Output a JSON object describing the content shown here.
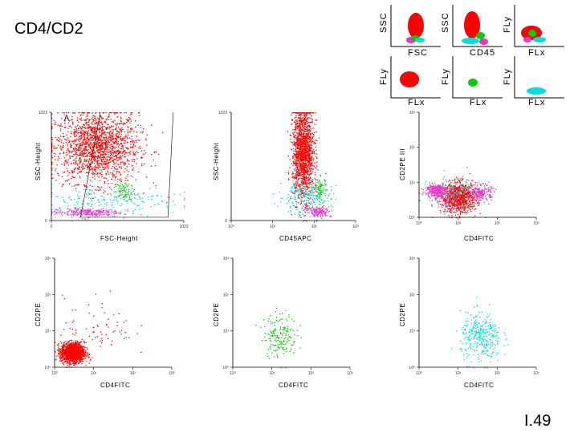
{
  "title": "CD4/CD2",
  "slide_number": "I.49",
  "colors": {
    "lymph": "#ff0000",
    "mono": "#00cc00",
    "gran": "#00dddd",
    "debris": "#ee33cc"
  },
  "schematics": [
    {
      "xlabel": "FSC",
      "ylabel": "SSC"
    },
    {
      "xlabel": "CD45",
      "ylabel": "SSC"
    },
    {
      "xlabel": "FLx",
      "ylabel": "FLy"
    },
    {
      "xlabel": "FLx",
      "ylabel": "FLy"
    },
    {
      "xlabel": "FLx",
      "ylabel": "FLy"
    },
    {
      "xlabel": "FLx",
      "ylabel": "FLy"
    }
  ],
  "chart_data": [
    {
      "type": "scatter",
      "panel_letter": "A",
      "xlabel": "FSC-Height",
      "ylabel": "SSC-Height",
      "xticks": [
        "0",
        "1023"
      ],
      "yticks": [
        "0",
        "1023"
      ],
      "xlim": [
        0,
        1023
      ],
      "ylim": [
        0,
        1023
      ],
      "series": [
        {
          "color": "lymph",
          "n": 1800,
          "center": [
            350,
            700
          ],
          "spread": [
            160,
            170
          ]
        },
        {
          "color": "gran",
          "n": 200,
          "center": [
            450,
            200
          ],
          "spread": [
            280,
            70
          ]
        },
        {
          "color": "mono",
          "n": 80,
          "center": [
            560,
            280
          ],
          "spread": [
            40,
            50
          ]
        },
        {
          "color": "debris",
          "n": 250,
          "center": [
            260,
            80
          ],
          "spread": [
            130,
            20
          ]
        }
      ]
    },
    {
      "type": "scatter",
      "xlabel": "CD45APC",
      "ylabel": "SSC-Height",
      "xticks": [
        "10⁰",
        "10¹",
        "10²",
        "10³"
      ],
      "yticks": [
        "0",
        "1023"
      ],
      "xlim": [
        0,
        4
      ],
      "ylim": [
        0,
        1023
      ],
      "series": [
        {
          "color": "lymph",
          "n": 1600,
          "center": [
            2.3,
            650
          ],
          "spread": [
            0.17,
            220
          ]
        },
        {
          "color": "gran",
          "n": 250,
          "center": [
            2.35,
            230
          ],
          "spread": [
            0.42,
            80
          ]
        },
        {
          "color": "mono",
          "n": 70,
          "center": [
            2.85,
            300
          ],
          "spread": [
            0.1,
            60
          ]
        },
        {
          "color": "debris",
          "n": 160,
          "center": [
            2.8,
            90
          ],
          "spread": [
            0.2,
            25
          ]
        }
      ]
    },
    {
      "type": "scatter",
      "xlabel": "CD4FITC",
      "ylabel": "CD2PE III",
      "xticks": [
        "10⁰",
        "10¹",
        "10²",
        "10³"
      ],
      "yticks": [
        "10⁰",
        "10¹",
        "10²",
        "10³"
      ],
      "xlim": [
        0,
        4
      ],
      "ylim": [
        0,
        4
      ],
      "series": [
        {
          "color": "lymph",
          "n": 900,
          "center": [
            1.35,
            0.75
          ],
          "spread": [
            0.3,
            0.28
          ]
        },
        {
          "color": "debris",
          "n": 280,
          "center": [
            0.55,
            1.05
          ],
          "spread": [
            0.18,
            0.12
          ]
        },
        {
          "color": "debris",
          "n": 200,
          "center": [
            2.1,
            0.95
          ],
          "spread": [
            0.18,
            0.15
          ]
        },
        {
          "color": "debris",
          "n": 150,
          "center": [
            0.95,
            0.85
          ],
          "spread": [
            0.35,
            0.25
          ]
        },
        {
          "color": "mono",
          "n": 60,
          "center": [
            1.1,
            0.8
          ],
          "spread": [
            0.5,
            0.35
          ]
        },
        {
          "color": "gran",
          "n": 60,
          "center": [
            1.3,
            0.9
          ],
          "spread": [
            0.45,
            0.35
          ]
        }
      ]
    },
    {
      "type": "scatter",
      "xlabel": "CD4FITC",
      "ylabel": "CD2PE",
      "xticks": [
        "10⁰",
        "10¹",
        "10²",
        "10³"
      ],
      "yticks": [
        "10⁰",
        "10¹",
        "10²",
        "10³"
      ],
      "xlim": [
        0,
        4
      ],
      "ylim": [
        0,
        4
      ],
      "series": [
        {
          "color": "lymph",
          "n": 1500,
          "center": [
            0.6,
            0.55
          ],
          "spread": [
            0.2,
            0.18
          ]
        },
        {
          "color": "lymph",
          "n": 70,
          "center": [
            1.5,
            1.5
          ],
          "spread": [
            0.6,
            0.55
          ]
        }
      ]
    },
    {
      "type": "scatter",
      "xlabel": "CD4FITC",
      "ylabel": "CD2PE",
      "xticks": [
        "10⁰",
        "10¹",
        "10²",
        "10³"
      ],
      "yticks": [
        "10⁰",
        "10¹",
        "10²",
        "10³"
      ],
      "xlim": [
        0,
        4
      ],
      "ylim": [
        0,
        4
      ],
      "series": [
        {
          "color": "mono",
          "n": 180,
          "center": [
            1.6,
            1.2
          ],
          "spread": [
            0.28,
            0.4
          ]
        }
      ]
    },
    {
      "type": "scatter",
      "xlabel": "CD4FITC",
      "ylabel": "CD2PE",
      "xticks": [
        "10⁰",
        "10¹",
        "10²",
        "10³"
      ],
      "yticks": [
        "10⁰",
        "10¹",
        "10²",
        "10³"
      ],
      "xlim": [
        0,
        4
      ],
      "ylim": [
        0,
        4
      ],
      "series": [
        {
          "color": "gran",
          "n": 350,
          "center": [
            2.1,
            1.1
          ],
          "spread": [
            0.35,
            0.45
          ]
        }
      ]
    }
  ]
}
